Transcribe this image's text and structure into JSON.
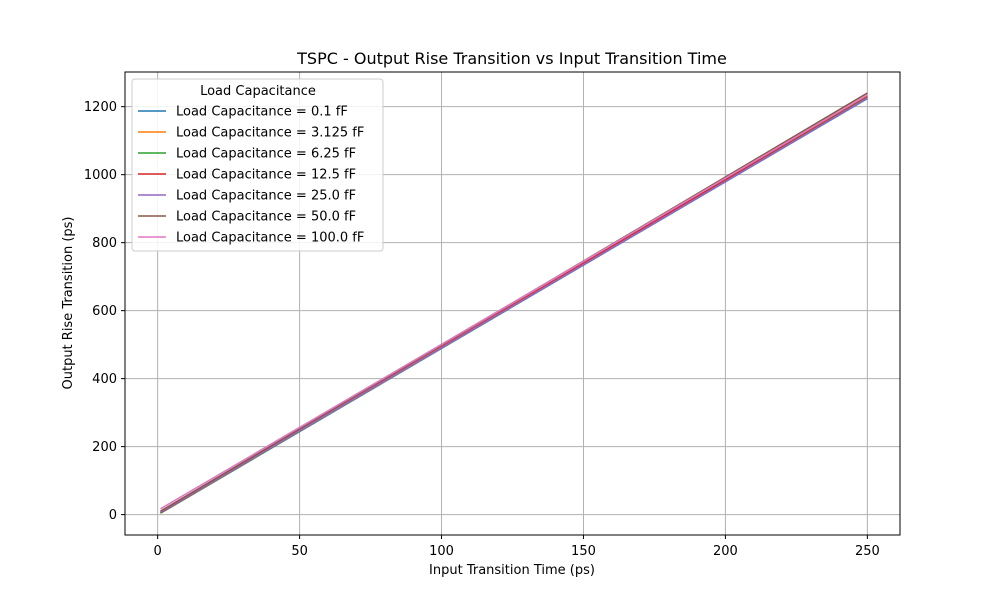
{
  "chart_data": {
    "type": "line",
    "title": "TSPC - Output Rise Transition vs Input Transition Time",
    "xlabel": "Input Transition Time (ps)",
    "ylabel": "Output Rise Transition (ps)",
    "xlim": [
      -11.5,
      261.5
    ],
    "ylim": [
      -60,
      1302
    ],
    "xticks": [
      0,
      50,
      100,
      150,
      200,
      250
    ],
    "yticks": [
      0,
      200,
      400,
      600,
      800,
      1000,
      1200
    ],
    "grid": true,
    "legend": {
      "title": "Load Capacitance",
      "placement": "upper-left"
    },
    "x": [
      1,
      250
    ],
    "series": [
      {
        "name": "Load Capacitance = 0.1 fF",
        "color": "#1f77b4",
        "values": [
          4,
          1224
        ]
      },
      {
        "name": "Load Capacitance = 3.125 fF",
        "color": "#ff7f0e",
        "values": [
          5,
          1226
        ]
      },
      {
        "name": "Load Capacitance = 6.25 fF",
        "color": "#2ca02c",
        "values": [
          5,
          1228
        ]
      },
      {
        "name": "Load Capacitance = 12.5 fF",
        "color": "#d62728",
        "values": [
          6,
          1232
        ]
      },
      {
        "name": "Load Capacitance = 25.0 fF",
        "color": "#9467bd",
        "values": [
          7,
          1225
        ]
      },
      {
        "name": "Load Capacitance = 50.0 fF",
        "color": "#8c564b",
        "values": [
          10,
          1240
        ]
      },
      {
        "name": "Load Capacitance = 100.0 fF",
        "color": "#e377c2",
        "values": [
          17,
          1234
        ]
      }
    ]
  }
}
